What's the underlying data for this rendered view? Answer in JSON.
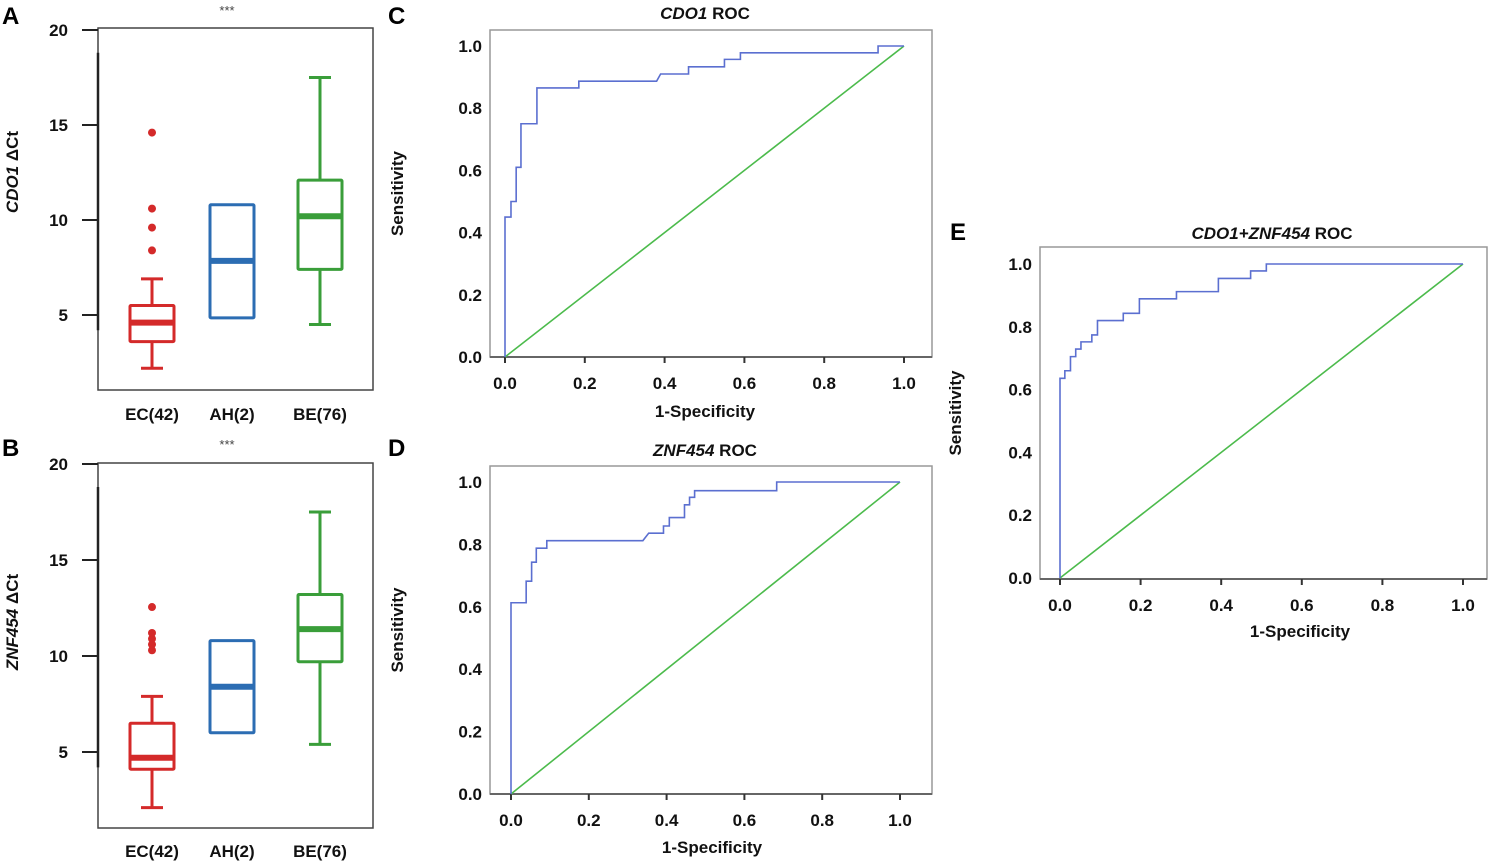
{
  "chart_data": [
    {
      "panel": "A",
      "type": "box",
      "significance": "***",
      "ylabel": {
        "gene": "CDO1",
        "suffix": " ΔCt"
      },
      "yticks": [
        5,
        10,
        15,
        20
      ],
      "ylim": [
        1,
        20
      ],
      "groups": [
        {
          "label": "EC(42)",
          "color": "#d42a2a",
          "whisker_low": 2.2,
          "q1": 3.6,
          "median": 4.6,
          "q3": 5.5,
          "whisker_high": 6.9,
          "outliers": [
            8.4,
            9.6,
            10.6,
            14.6
          ]
        },
        {
          "label": "AH(2)",
          "color": "#2c6db3",
          "whisker_low": 4.85,
          "q1": 4.85,
          "median": 7.85,
          "q3": 10.8,
          "whisker_high": 10.8,
          "outliers": []
        },
        {
          "label": "BE(76)",
          "color": "#3a9e3a",
          "whisker_low": 4.5,
          "q1": 7.4,
          "median": 10.2,
          "q3": 12.1,
          "whisker_high": 17.5,
          "outliers": []
        }
      ]
    },
    {
      "panel": "B",
      "type": "box",
      "significance": "***",
      "ylabel": {
        "gene": "ZNF454",
        "suffix": " ΔCt"
      },
      "yticks": [
        5,
        10,
        15,
        20
      ],
      "ylim": [
        1,
        20
      ],
      "groups": [
        {
          "label": "EC(42)",
          "color": "#d42a2a",
          "whisker_low": 2.1,
          "q1": 4.1,
          "median": 4.7,
          "q3": 6.5,
          "whisker_high": 7.9,
          "outliers": [
            10.3,
            10.6,
            10.9,
            11.2,
            12.55
          ]
        },
        {
          "label": "AH(2)",
          "color": "#2c6db3",
          "whisker_low": 6.0,
          "q1": 6.0,
          "median": 8.4,
          "q3": 10.8,
          "whisker_high": 10.8,
          "outliers": []
        },
        {
          "label": "BE(76)",
          "color": "#3a9e3a",
          "whisker_low": 5.4,
          "q1": 9.7,
          "median": 11.4,
          "q3": 13.2,
          "whisker_high": 17.5,
          "outliers": []
        }
      ]
    },
    {
      "panel": "C",
      "type": "line",
      "title": {
        "gene": "CDO1",
        "suffix": " ROC"
      },
      "xlabel": "1-Specificity",
      "ylabel": "Sensitivity",
      "xticks": [
        "0.0",
        "0.2",
        "0.4",
        "0.6",
        "0.8",
        "1.0"
      ],
      "yticks": [
        "0.0",
        "0.2",
        "0.4",
        "0.6",
        "0.8",
        "1.0"
      ],
      "xlim": [
        0,
        1
      ],
      "ylim": [
        0,
        1
      ],
      "roc_color": "#5b6fd0",
      "diag_color": "#4cbb4c",
      "roc": [
        [
          0,
          0
        ],
        [
          0,
          0.45
        ],
        [
          0.015,
          0.45
        ],
        [
          0.015,
          0.5
        ],
        [
          0.028,
          0.5
        ],
        [
          0.028,
          0.61
        ],
        [
          0.04,
          0.61
        ],
        [
          0.04,
          0.75
        ],
        [
          0.08,
          0.75
        ],
        [
          0.08,
          0.865
        ],
        [
          0.185,
          0.865
        ],
        [
          0.185,
          0.887
        ],
        [
          0.38,
          0.887
        ],
        [
          0.39,
          0.91
        ],
        [
          0.46,
          0.91
        ],
        [
          0.46,
          0.933
        ],
        [
          0.55,
          0.933
        ],
        [
          0.55,
          0.957
        ],
        [
          0.59,
          0.957
        ],
        [
          0.59,
          0.978
        ],
        [
          0.935,
          0.978
        ],
        [
          0.935,
          1
        ],
        [
          1,
          1
        ]
      ]
    },
    {
      "panel": "D",
      "type": "line",
      "title": {
        "gene": "ZNF454",
        "suffix": " ROC"
      },
      "xlabel": "1-Specificity",
      "ylabel": "Sensitivity",
      "xticks": [
        "0.0",
        "0.2",
        "0.4",
        "0.6",
        "0.8",
        "1.0"
      ],
      "yticks": [
        "0.0",
        "0.2",
        "0.4",
        "0.6",
        "0.8",
        "1.0"
      ],
      "xlim": [
        0,
        1
      ],
      "ylim": [
        0,
        1
      ],
      "roc_color": "#5b6fd0",
      "diag_color": "#4cbb4c",
      "roc": [
        [
          0,
          0
        ],
        [
          0,
          0.613
        ],
        [
          0.039,
          0.613
        ],
        [
          0.039,
          0.682
        ],
        [
          0.053,
          0.682
        ],
        [
          0.053,
          0.743
        ],
        [
          0.065,
          0.743
        ],
        [
          0.065,
          0.788
        ],
        [
          0.092,
          0.788
        ],
        [
          0.092,
          0.812
        ],
        [
          0.339,
          0.812
        ],
        [
          0.354,
          0.836
        ],
        [
          0.392,
          0.836
        ],
        [
          0.392,
          0.859
        ],
        [
          0.407,
          0.859
        ],
        [
          0.407,
          0.886
        ],
        [
          0.446,
          0.886
        ],
        [
          0.446,
          0.927
        ],
        [
          0.459,
          0.927
        ],
        [
          0.459,
          0.951
        ],
        [
          0.472,
          0.951
        ],
        [
          0.472,
          0.972
        ],
        [
          0.683,
          0.972
        ],
        [
          0.683,
          1
        ],
        [
          1,
          1
        ]
      ]
    },
    {
      "panel": "E",
      "type": "line",
      "title": {
        "gene": "CDO1+ZNF454",
        "suffix": " ROC"
      },
      "xlabel": "1-Specificity",
      "ylabel": "Sensitivity",
      "xticks": [
        "0.0",
        "0.2",
        "0.4",
        "0.6",
        "0.8",
        "1.0"
      ],
      "yticks": [
        "0.0",
        "0.2",
        "0.4",
        "0.6",
        "0.8",
        "1.0"
      ],
      "xlim": [
        0,
        1
      ],
      "ylim": [
        0,
        1
      ],
      "roc_color": "#5b6fd0",
      "diag_color": "#4cbb4c",
      "roc": [
        [
          0,
          0
        ],
        [
          0,
          0.636
        ],
        [
          0.012,
          0.636
        ],
        [
          0.012,
          0.66
        ],
        [
          0.026,
          0.66
        ],
        [
          0.026,
          0.705
        ],
        [
          0.039,
          0.705
        ],
        [
          0.039,
          0.729
        ],
        [
          0.052,
          0.729
        ],
        [
          0.052,
          0.752
        ],
        [
          0.079,
          0.752
        ],
        [
          0.079,
          0.774
        ],
        [
          0.093,
          0.774
        ],
        [
          0.093,
          0.82
        ],
        [
          0.157,
          0.82
        ],
        [
          0.157,
          0.843
        ],
        [
          0.197,
          0.843
        ],
        [
          0.197,
          0.889
        ],
        [
          0.289,
          0.889
        ],
        [
          0.289,
          0.912
        ],
        [
          0.393,
          0.912
        ],
        [
          0.393,
          0.954
        ],
        [
          0.473,
          0.954
        ],
        [
          0.473,
          0.978
        ],
        [
          0.512,
          0.978
        ],
        [
          0.512,
          1
        ],
        [
          1,
          1
        ]
      ]
    }
  ]
}
